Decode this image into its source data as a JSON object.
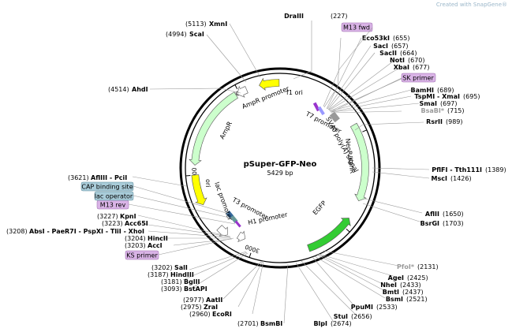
{
  "credit": "Created with SnapGene®",
  "plasmid": {
    "name": "pSuper-GFP-Neo",
    "size": "5429 bp"
  },
  "ticks": [
    {
      "label": "1000",
      "bp": 1000
    },
    {
      "label": "2000",
      "bp": 2000
    },
    {
      "label": "3000",
      "bp": 3000
    },
    {
      "label": "4000",
      "bp": 4000
    },
    {
      "label": "5000",
      "bp": 5000
    }
  ],
  "features": [
    {
      "label": "f1 ori",
      "color": "#ffff00"
    },
    {
      "label": "AmpR promoter",
      "color": "#ffffff"
    },
    {
      "label": "AmpR",
      "color": "#ccffcc"
    },
    {
      "label": "ori",
      "color": "#ffff00"
    },
    {
      "label": "lac promoter",
      "color": "#ffffff"
    },
    {
      "label": "T3 promoter",
      "color": "#ffffff"
    },
    {
      "label": "H1 promoter",
      "color": "#ffffff"
    },
    {
      "label": "EGFP",
      "color": "#33cc33"
    },
    {
      "label": "NeoR/KanR",
      "color": "#ccffcc"
    },
    {
      "label": "SV40 poly(A) signal",
      "color": "#999999"
    },
    {
      "label": "T7 promoter",
      "color": "#ffffff"
    }
  ],
  "primers": [
    {
      "label": "M13 fwd"
    },
    {
      "label": "SK primer"
    },
    {
      "label": "KS primer"
    },
    {
      "label": "M13 rev"
    }
  ],
  "boxed": [
    {
      "label": "CAP binding site"
    },
    {
      "label": "lac operator"
    }
  ],
  "sites": [
    {
      "name": "DraIII",
      "pos": "(227)"
    },
    {
      "name": "Eco53kI",
      "pos": "(655)"
    },
    {
      "name": "SacI",
      "pos": "(657)"
    },
    {
      "name": "SacII",
      "pos": "(664)"
    },
    {
      "name": "NotI",
      "pos": "(670)"
    },
    {
      "name": "XbaI",
      "pos": "(677)"
    },
    {
      "name": "BamHI",
      "pos": "(689)"
    },
    {
      "name": "TspMI - XmaI",
      "pos": "(695)"
    },
    {
      "name": "SmaI",
      "pos": "(697)"
    },
    {
      "name": "BsaBI*",
      "pos": "(715)"
    },
    {
      "name": "RsrII",
      "pos": "(989)"
    },
    {
      "name": "PflFI - Tth111I",
      "pos": "(1389)"
    },
    {
      "name": "MscI",
      "pos": "(1426)"
    },
    {
      "name": "AflII",
      "pos": "(1650)"
    },
    {
      "name": "BsrGI",
      "pos": "(1703)"
    },
    {
      "name": "PfoI*",
      "pos": "(2131)"
    },
    {
      "name": "AgeI",
      "pos": "(2425)"
    },
    {
      "name": "NheI",
      "pos": "(2433)"
    },
    {
      "name": "BmtI",
      "pos": "(2437)"
    },
    {
      "name": "BsmI",
      "pos": "(2521)"
    },
    {
      "name": "PpuMI",
      "pos": "(2533)"
    },
    {
      "name": "StuI",
      "pos": "(2656)"
    },
    {
      "name": "BlpI",
      "pos": "(2674)"
    },
    {
      "name": "BsmBI",
      "pos": "(2701)"
    },
    {
      "name": "EcoRI",
      "pos": "(2960)"
    },
    {
      "name": "ZraI",
      "pos": "(2975)"
    },
    {
      "name": "AatII",
      "pos": "(2977)"
    },
    {
      "name": "BstAPI",
      "pos": "(3093)"
    },
    {
      "name": "BglII",
      "pos": "(3181)"
    },
    {
      "name": "HindIII",
      "pos": "(3187)"
    },
    {
      "name": "SalI",
      "pos": "(3202)"
    },
    {
      "name": "AccI",
      "pos": "(3203)"
    },
    {
      "name": "HincII",
      "pos": "(3204)"
    },
    {
      "name": "AbsI - PaeR7I - PspXI - TliI - XhoI",
      "pos": "(3208)"
    },
    {
      "name": "Acc65I",
      "pos": "(3223)"
    },
    {
      "name": "KpnI",
      "pos": "(3227)"
    },
    {
      "name": "AflIII - PciI",
      "pos": "(3621)"
    },
    {
      "name": "AhdI",
      "pos": "(4514)"
    },
    {
      "name": "ScaI",
      "pos": "(4994)"
    },
    {
      "name": "XmnI",
      "pos": "(5113)"
    }
  ]
}
